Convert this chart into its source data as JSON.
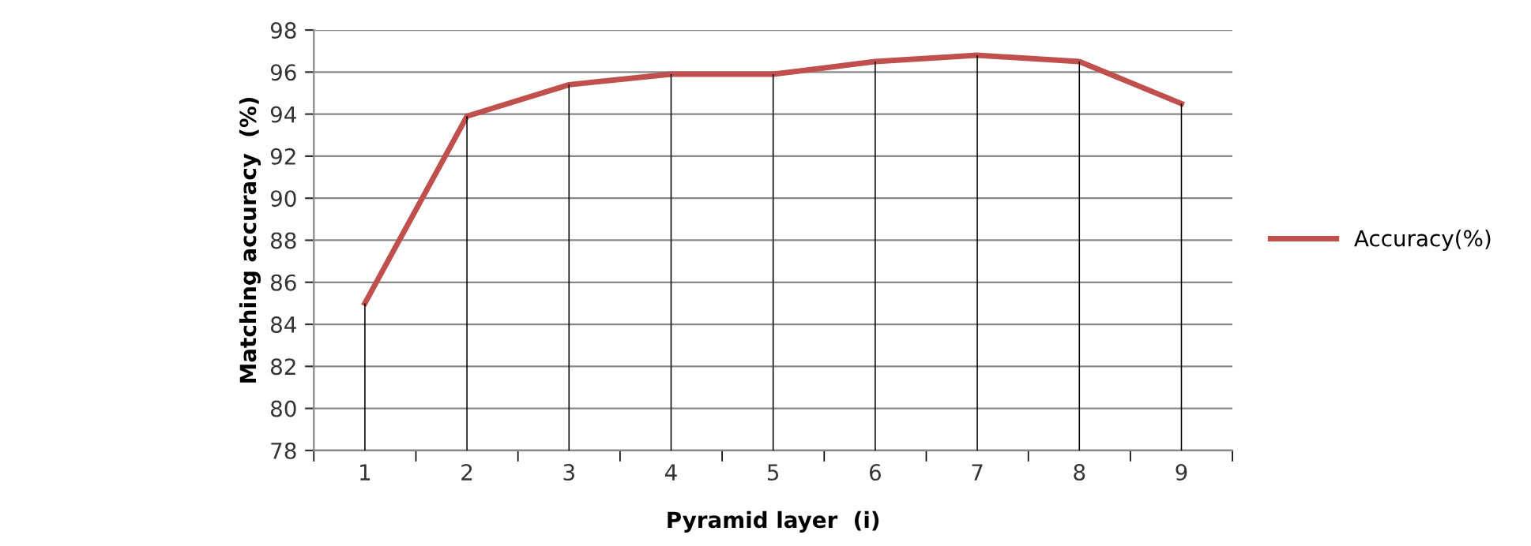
{
  "chart_data": {
    "type": "line",
    "xlabel": "Pyramid layer  (i)",
    "ylabel": "Matching accuracy  (%)",
    "categories": [
      "1",
      "2",
      "3",
      "4",
      "5",
      "6",
      "7",
      "8",
      "9"
    ],
    "series": [
      {
        "type": "bar",
        "color": "#000000",
        "values": [
          85.0,
          93.9,
          95.4,
          95.9,
          95.9,
          96.5,
          96.8,
          96.5,
          94.5
        ]
      },
      {
        "name": "Accuracy(%)",
        "color": "#c0504d",
        "values": [
          85.0,
          93.9,
          95.4,
          95.9,
          95.9,
          96.5,
          96.8,
          96.5,
          94.5
        ]
      }
    ],
    "ylim": [
      78,
      98
    ],
    "yticks": [
      78,
      80,
      82,
      84,
      86,
      88,
      90,
      92,
      94,
      96,
      98
    ],
    "grid": "y",
    "legend": "right",
    "marker": "none",
    "line_style": "solid"
  }
}
